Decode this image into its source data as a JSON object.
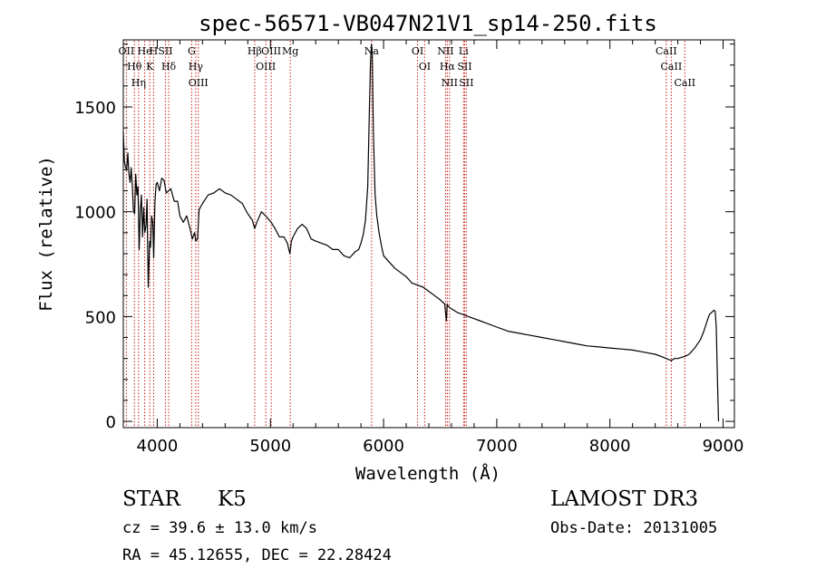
{
  "chart_data": {
    "type": "line",
    "title": "spec-56571-VB047N21V1_sp14-250.fits",
    "xlabel": "Wavelength (Å)",
    "ylabel": "Flux (relative)",
    "xlim": [
      3700,
      9100
    ],
    "ylim": [
      -30,
      1820
    ],
    "x_ticks": [
      4000,
      5000,
      6000,
      7000,
      8000,
      9000
    ],
    "x_tick_labels": [
      "4000",
      "5000",
      "6000",
      "7000",
      "8000",
      "9000"
    ],
    "y_ticks": [
      0,
      500,
      1000,
      1500
    ],
    "y_tick_labels": [
      "0",
      "500",
      "1000",
      "1500"
    ],
    "grid": false,
    "series": [
      {
        "name": "spectrum",
        "x": [
          3700,
          3710,
          3720,
          3730,
          3740,
          3750,
          3760,
          3770,
          3780,
          3790,
          3800,
          3810,
          3820,
          3830,
          3840,
          3850,
          3860,
          3870,
          3880,
          3890,
          3900,
          3910,
          3920,
          3933,
          3940,
          3950,
          3960,
          3968,
          3980,
          3990,
          4000,
          4020,
          4040,
          4060,
          4080,
          4101,
          4120,
          4150,
          4180,
          4200,
          4230,
          4260,
          4290,
          4310,
          4330,
          4340,
          4355,
          4370,
          4400,
          4450,
          4500,
          4550,
          4600,
          4650,
          4700,
          4750,
          4800,
          4840,
          4861,
          4880,
          4920,
          4959,
          4990,
          5007,
          5040,
          5080,
          5120,
          5150,
          5172,
          5185,
          5200,
          5240,
          5280,
          5320,
          5360,
          5400,
          5450,
          5500,
          5550,
          5600,
          5650,
          5700,
          5750,
          5780,
          5800,
          5820,
          5840,
          5860,
          5875,
          5885,
          5893,
          5900,
          5910,
          5925,
          5940,
          5960,
          5980,
          6000,
          6050,
          6100,
          6150,
          6200,
          6250,
          6300,
          6350,
          6400,
          6450,
          6500,
          6540,
          6555,
          6563,
          6570,
          6590,
          6620,
          6650,
          6700,
          6750,
          6800,
          6850,
          6900,
          7000,
          7100,
          7200,
          7300,
          7400,
          7500,
          7600,
          7700,
          7800,
          7900,
          8000,
          8100,
          8200,
          8300,
          8400,
          8450,
          8498,
          8542,
          8570,
          8600,
          8662,
          8700,
          8750,
          8800,
          8830,
          8860,
          8880,
          8900,
          8920,
          8930,
          8940,
          8950,
          8960
        ],
        "y": [
          1380,
          1240,
          1210,
          1200,
          1280,
          1180,
          1140,
          1210,
          1120,
          1000,
          990,
          1180,
          1080,
          1120,
          820,
          1000,
          1080,
          880,
          1020,
          900,
          930,
          1060,
          640,
          860,
          830,
          980,
          950,
          780,
          1050,
          1130,
          1140,
          1100,
          1160,
          1150,
          1090,
          1100,
          1110,
          1050,
          1050,
          980,
          950,
          980,
          920,
          870,
          900,
          860,
          870,
          1010,
          1040,
          1080,
          1090,
          1110,
          1090,
          1080,
          1060,
          1040,
          990,
          960,
          920,
          950,
          1000,
          980,
          960,
          950,
          920,
          880,
          880,
          850,
          800,
          860,
          880,
          920,
          940,
          920,
          870,
          860,
          850,
          840,
          820,
          820,
          790,
          780,
          810,
          820,
          850,
          890,
          960,
          1120,
          1500,
          1720,
          1800,
          1760,
          1380,
          1080,
          980,
          900,
          840,
          790,
          760,
          730,
          710,
          690,
          660,
          650,
          640,
          620,
          600,
          580,
          560,
          480,
          560,
          550,
          540,
          530,
          520,
          510,
          500,
          490,
          480,
          470,
          450,
          430,
          420,
          410,
          400,
          390,
          380,
          370,
          360,
          355,
          350,
          345,
          340,
          330,
          320,
          310,
          300,
          290,
          300,
          300,
          310,
          320,
          350,
          390,
          430,
          480,
          510,
          520,
          530,
          525,
          450,
          200,
          0
        ]
      }
    ],
    "line_markers": [
      {
        "name": "OII",
        "wavelength": 3727
      },
      {
        "name": "Hθ",
        "wavelength": 3798
      },
      {
        "name": "Hη",
        "wavelength": 3835
      },
      {
        "name": "He",
        "wavelength": 3889
      },
      {
        "name": "K",
        "wavelength": 3934
      },
      {
        "name": "H",
        "wavelength": 3968
      },
      {
        "name": "SII",
        "wavelength": 4072
      },
      {
        "name": "Hδ",
        "wavelength": 4101
      },
      {
        "name": "G",
        "wavelength": 4304
      },
      {
        "name": "Hγ",
        "wavelength": 4340
      },
      {
        "name": "OIII",
        "wavelength": 4363
      },
      {
        "name": "Hβ",
        "wavelength": 4861
      },
      {
        "name": "OIII",
        "wavelength": 4959
      },
      {
        "name": "OIII",
        "wavelength": 5007
      },
      {
        "name": "Mg",
        "wavelength": 5175
      },
      {
        "name": "Na",
        "wavelength": 5894
      },
      {
        "name": "OI",
        "wavelength": 6300
      },
      {
        "name": "OI",
        "wavelength": 6363
      },
      {
        "name": "NII",
        "wavelength": 6548
      },
      {
        "name": "Hα",
        "wavelength": 6563
      },
      {
        "name": "NII",
        "wavelength": 6583
      },
      {
        "name": "Li",
        "wavelength": 6707
      },
      {
        "name": "SII",
        "wavelength": 6716
      },
      {
        "name": "SII",
        "wavelength": 6731
      },
      {
        "name": "CaII",
        "wavelength": 8498
      },
      {
        "name": "CaII",
        "wavelength": 8542
      },
      {
        "name": "CaII",
        "wavelength": 8662
      }
    ],
    "marker_color": "#c81e1e",
    "line_color": "#000000"
  },
  "info": {
    "object_class": "STAR",
    "subclass": "K5",
    "survey": "LAMOST DR3",
    "cz_text": "cz = 39.6 ± 13.0 km/s",
    "obs_date_text": "Obs-Date: 20131005",
    "coords_text": "RA =  45.12655, DEC =  22.28424"
  }
}
